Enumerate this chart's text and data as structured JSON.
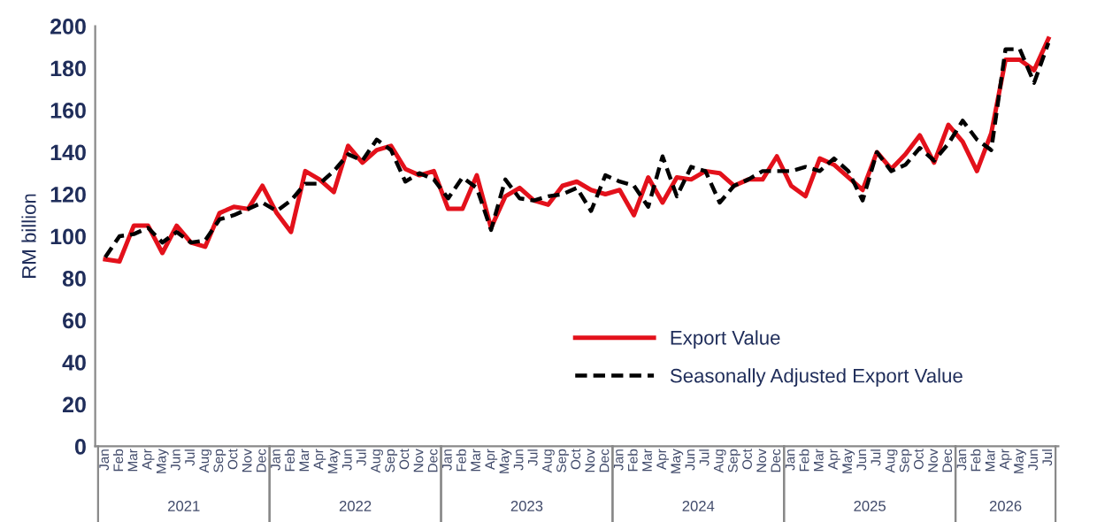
{
  "chart_data": {
    "type": "line",
    "ylabel": "RM billion",
    "ylim": [
      0,
      200
    ],
    "yticks": [
      0,
      20,
      40,
      60,
      80,
      100,
      120,
      140,
      160,
      180,
      200
    ],
    "grid": false,
    "legend": "bottom",
    "marker": "none",
    "categories": [
      "Jan",
      "Feb",
      "Mar",
      "Apr",
      "May",
      "Jun",
      "Jul",
      "Aug",
      "Sep",
      "Oct",
      "Nov",
      "Dec",
      "Jan",
      "Feb",
      "Mar",
      "Apr",
      "May",
      "Jun",
      "Jul",
      "Aug",
      "Sep",
      "Oct",
      "Nov",
      "Dec",
      "Jan",
      "Feb",
      "Mar",
      "Apr",
      "May",
      "Jun",
      "Jul",
      "Aug",
      "Sep",
      "Oct",
      "Nov",
      "Dec",
      "Jan",
      "Feb",
      "Mar",
      "Apr",
      "May",
      "Jun",
      "Jul",
      "Aug",
      "Sep",
      "Oct",
      "Nov",
      "Dec",
      "Jan",
      "Feb",
      "Mar",
      "Apr",
      "May",
      "Jun",
      "Jul",
      "Aug",
      "Sep",
      "Oct",
      "Nov",
      "Dec",
      "Jan",
      "Feb",
      "Mar",
      "Apr",
      "May",
      "Jun",
      "Jul"
    ],
    "annotations": [
      "2021",
      "2022",
      "2023",
      "2024",
      "2025",
      "2026"
    ],
    "series": [
      {
        "name": "Export Value",
        "color": "#e3111b",
        "line_style": "solid",
        "values": [
          89,
          88,
          105,
          105,
          92,
          105,
          97,
          95,
          111,
          114,
          113,
          124,
          111,
          102,
          131,
          127,
          121,
          143,
          135,
          141,
          143,
          132,
          129,
          131,
          113,
          113,
          129,
          104,
          119,
          123,
          117,
          115,
          124,
          126,
          122,
          120,
          122,
          110,
          128,
          116,
          128,
          127,
          131,
          130,
          124,
          127,
          127,
          138,
          124,
          119,
          137,
          134,
          128,
          122,
          140,
          132,
          139,
          148,
          135,
          153,
          145,
          131,
          149,
          184,
          184,
          179,
          194
        ]
      },
      {
        "name": "Seasonally Adjusted Export Value",
        "color": "#000000",
        "line_style": "dashed",
        "values": [
          90,
          100,
          101,
          104,
          97,
          102,
          97,
          98,
          108,
          110,
          113,
          116,
          112,
          117,
          125,
          125,
          131,
          139,
          136,
          146,
          141,
          126,
          130,
          127,
          118,
          128,
          123,
          103,
          127,
          118,
          117,
          119,
          120,
          123,
          112,
          129,
          126,
          124,
          114,
          138,
          119,
          133,
          131,
          116,
          124,
          127,
          131,
          131,
          131,
          133,
          131,
          137,
          131,
          117,
          140,
          131,
          134,
          142,
          136,
          144,
          155,
          146,
          141,
          189,
          189,
          173,
          192
        ]
      }
    ]
  }
}
